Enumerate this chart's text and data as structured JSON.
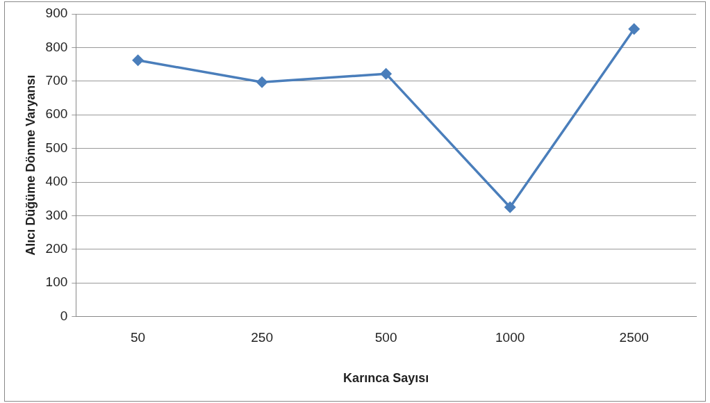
{
  "chart_data": {
    "type": "line",
    "xlabel": "Karınca Sayısı",
    "ylabel": "Alıcı Düğüme Dönme Varyansı",
    "categories": [
      "50",
      "250",
      "500",
      "1000",
      "2500"
    ],
    "series": [
      {
        "color": "#4a7ebb",
        "values": [
          762,
          697,
          722,
          325,
          855
        ]
      }
    ],
    "ylim": [
      0,
      900
    ],
    "yticks": [
      0,
      100,
      200,
      300,
      400,
      500,
      600,
      700,
      800,
      900
    ],
    "grid": "y",
    "legend": false,
    "marker": "diamond",
    "line_style": "solid"
  }
}
